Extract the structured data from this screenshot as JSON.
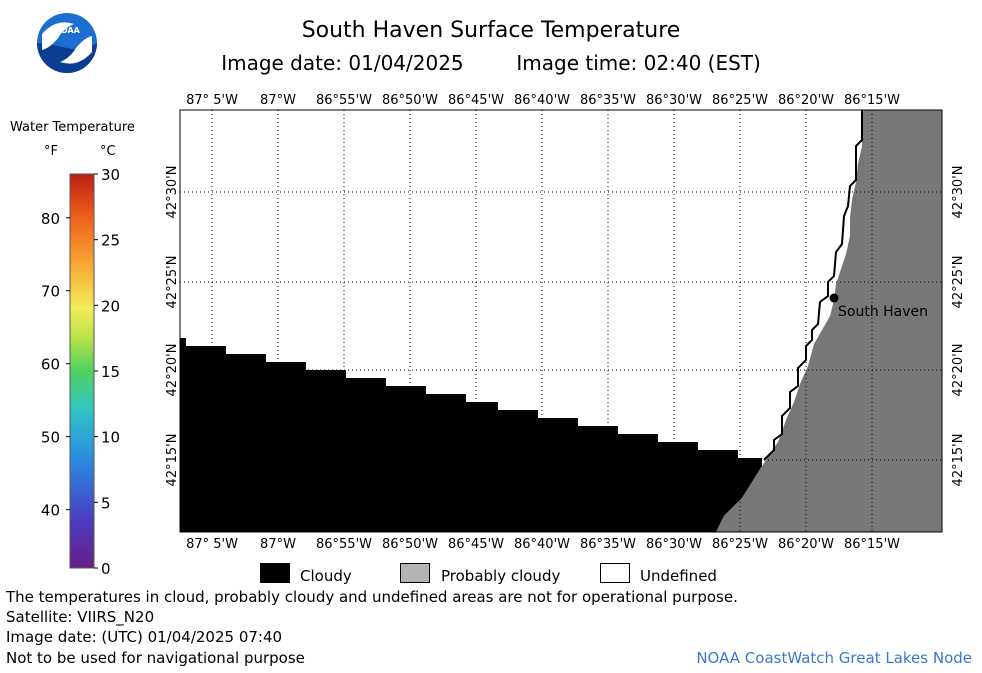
{
  "header": {
    "title": "South Haven Surface Temperature",
    "image_date_label": "Image date: 01/04/2025",
    "image_time_label": "Image time: 02:40 (EST)"
  },
  "logo": {
    "text": "NOAA",
    "colors": {
      "blue": "#1c6fd0",
      "dark_blue": "#0b3e8f",
      "white": "#ffffff"
    }
  },
  "color_scale": {
    "title": "Water Temperature",
    "unit_f": "°F",
    "unit_c": "°C",
    "fahrenheit_ticks": [
      "40",
      "50",
      "60",
      "70",
      "80"
    ],
    "celsius_ticks": [
      "0",
      "5",
      "10",
      "15",
      "20",
      "25",
      "30"
    ],
    "range_c": [
      0,
      30
    ]
  },
  "map": {
    "top_longitude_labels": [
      "87° 5'W",
      "87°W",
      "86°55'W",
      "86°50'W",
      "86°45'W",
      "86°40'W",
      "86°35'W",
      "86°30'W",
      "86°25'W",
      "86°20'W",
      "86°15'W"
    ],
    "bottom_longitude_labels": [
      "87° 5'W",
      "87°W",
      "86°55'W",
      "86°50'W",
      "86°45'W",
      "86°40'W",
      "86°35'W",
      "86°30'W",
      "86°25'W",
      "86°20'W",
      "86°15'W"
    ],
    "latitude_labels": [
      "42°30'N",
      "42°25'N",
      "42°20'N",
      "42°15'N"
    ],
    "city": {
      "name": "South Haven"
    },
    "colors": {
      "cloudy": "#000000",
      "land": "#777777",
      "undefined": "#ffffff",
      "grid": "#000000"
    }
  },
  "legend": {
    "items": [
      {
        "label": "Cloudy",
        "color": "#000000"
      },
      {
        "label": "Probably cloudy",
        "color": "#b4b4b4"
      },
      {
        "label": "Undefined",
        "color": "#ffffff"
      }
    ]
  },
  "footer": {
    "note": "The temperatures in cloud, probably cloudy and undefined areas are not for operational purpose.",
    "satellite": "Satellite: VIIRS_N20",
    "utc_date": "Image date: (UTC) 01/04/2025  07:40",
    "disclaimer": "Not to be used for navigational purpose",
    "credit": "NOAA CoastWatch Great Lakes Node"
  }
}
